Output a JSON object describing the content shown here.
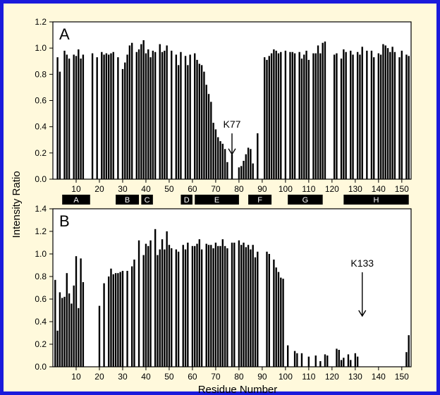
{
  "figure": {
    "border_color": "#1a1adc",
    "background": "#fff9dc",
    "shared_ylabel": "Intensity Ratio",
    "shared_xlabel": "Residue Number",
    "xtick_labels": [
      "10",
      "20",
      "30",
      "40",
      "50",
      "60",
      "70",
      "80",
      "90",
      "100",
      "110",
      "120",
      "130",
      "140",
      "150"
    ]
  },
  "chart_data": [
    {
      "type": "bar",
      "panel_label": "A",
      "xlim": [
        0,
        154
      ],
      "ylim": [
        0,
        1.2
      ],
      "yticks": [
        0.0,
        0.2,
        0.4,
        0.6,
        0.8,
        1.0,
        1.2
      ],
      "ytick_labels": [
        "0.0",
        "0.2",
        "0.4",
        "0.6",
        "0.8",
        "1.0",
        "1.2"
      ],
      "xticks": [
        10,
        20,
        30,
        40,
        50,
        60,
        70,
        80,
        90,
        100,
        110,
        120,
        130,
        140,
        150
      ],
      "bar_color": "#000000",
      "annotation": {
        "text": "K77",
        "x": 77,
        "y": 0.36,
        "arrow_to": 0.19
      },
      "x": [
        2,
        3,
        5,
        6,
        7,
        9,
        10,
        11,
        12,
        13,
        17,
        19,
        21,
        22,
        23,
        24,
        25,
        26,
        28,
        30,
        31,
        32,
        33,
        34,
        36,
        37,
        38,
        39,
        40,
        41,
        42,
        43,
        44,
        46,
        47,
        48,
        49,
        51,
        53,
        54,
        55,
        57,
        58,
        59,
        61,
        62,
        63,
        64,
        65,
        66,
        67,
        68,
        69,
        70,
        71,
        72,
        73,
        74,
        75,
        77,
        80,
        81,
        82,
        83,
        84,
        85,
        86,
        88,
        91,
        92,
        93,
        94,
        95,
        96,
        97,
        98,
        100,
        102,
        103,
        104,
        106,
        107,
        108,
        109,
        110,
        112,
        113,
        114,
        115,
        116,
        117,
        121,
        122,
        124,
        125,
        126,
        128,
        129,
        131,
        132,
        133,
        135,
        137,
        138,
        140,
        141,
        142,
        143,
        144,
        145,
        146,
        147,
        149,
        150,
        152,
        153
      ],
      "values": [
        0.93,
        0.82,
        0.98,
        0.95,
        0.92,
        0.95,
        0.94,
        0.99,
        0.92,
        0.95,
        0.96,
        0.93,
        0.97,
        0.95,
        0.96,
        0.95,
        0.96,
        0.97,
        0.93,
        0.84,
        0.89,
        0.95,
        1.02,
        1.04,
        0.97,
        0.99,
        1.03,
        1.06,
        0.96,
        0.99,
        0.93,
        0.98,
        0.97,
        1.03,
        0.97,
        0.98,
        1.02,
        0.98,
        0.95,
        0.87,
        0.97,
        0.94,
        0.87,
        0.95,
        0.96,
        0.91,
        0.88,
        0.87,
        0.82,
        0.72,
        0.65,
        0.59,
        0.43,
        0.38,
        0.32,
        0.29,
        0.27,
        0.23,
        0.13,
        0.19,
        0.09,
        0.1,
        0.14,
        0.19,
        0.24,
        0.23,
        0.12,
        0.35,
        0.93,
        0.91,
        0.94,
        0.96,
        0.99,
        0.98,
        0.96,
        0.97,
        0.98,
        0.97,
        0.97,
        0.96,
        0.97,
        0.92,
        0.95,
        0.98,
        0.91,
        0.96,
        0.96,
        1.02,
        0.96,
        1.04,
        1.05,
        0.95,
        0.96,
        0.92,
        0.99,
        0.97,
        0.98,
        0.95,
        0.97,
        0.95,
        1.01,
        0.98,
        0.98,
        0.93,
        0.96,
        0.95,
        1.03,
        1.02,
        1.0,
        0.97,
        1.01,
        0.97,
        0.93,
        0.98,
        0.95,
        0.94
      ],
      "segments": [
        {
          "label": "A",
          "start": 4,
          "end": 16
        },
        {
          "label": "B",
          "start": 27,
          "end": 37
        },
        {
          "label": "C",
          "start": 38,
          "end": 43
        },
        {
          "label": "D",
          "start": 55,
          "end": 60
        },
        {
          "label": "E",
          "start": 61,
          "end": 80
        },
        {
          "label": "F",
          "start": 84,
          "end": 94
        },
        {
          "label": "G",
          "start": 101,
          "end": 116
        },
        {
          "label": "H",
          "start": 125,
          "end": 153
        }
      ]
    },
    {
      "type": "bar",
      "panel_label": "B",
      "xlim": [
        0,
        154
      ],
      "ylim": [
        0,
        1.4
      ],
      "yticks": [
        0.0,
        0.2,
        0.4,
        0.6,
        0.8,
        1.0,
        1.2,
        1.4
      ],
      "ytick_labels": [
        "0.0",
        "0.2",
        "0.4",
        "0.6",
        "0.8",
        "1.0",
        "1.2",
        "1.4"
      ],
      "xticks": [
        10,
        20,
        30,
        40,
        50,
        60,
        70,
        80,
        90,
        100,
        110,
        120,
        130,
        140,
        150
      ],
      "bar_color": "#000000",
      "annotation": {
        "text": "K133",
        "x": 133,
        "y": 0.85,
        "arrow_to": 0.45
      },
      "x": [
        1,
        2,
        3,
        4,
        5,
        6,
        7,
        8,
        9,
        10,
        11,
        12,
        13,
        20,
        22,
        24,
        25,
        26,
        27,
        28,
        29,
        30,
        32,
        34,
        35,
        37,
        39,
        40,
        41,
        42,
        44,
        45,
        46,
        47,
        48,
        49,
        50,
        51,
        53,
        54,
        56,
        57,
        58,
        60,
        61,
        62,
        63,
        64,
        66,
        67,
        68,
        69,
        70,
        71,
        72,
        73,
        74,
        75,
        77,
        78,
        80,
        81,
        82,
        83,
        84,
        85,
        86,
        87,
        88,
        92,
        93,
        95,
        96,
        97,
        98,
        99,
        101,
        104,
        105,
        107,
        110,
        113,
        115,
        117,
        118,
        122,
        123,
        124,
        125,
        127,
        128,
        130,
        131,
        152,
        153
      ],
      "values": [
        0.77,
        0.32,
        0.66,
        0.61,
        0.62,
        0.83,
        0.65,
        0.56,
        0.72,
        0.98,
        0.52,
        0.96,
        0.75,
        0.54,
        0.74,
        0.8,
        0.87,
        0.82,
        0.83,
        0.83,
        0.84,
        0.85,
        0.85,
        0.89,
        0.95,
        1.12,
        0.99,
        1.09,
        1.07,
        1.12,
        1.22,
        0.99,
        1.04,
        1.13,
        1.04,
        1.2,
        1.08,
        1.05,
        1.04,
        1.02,
        1.08,
        1.04,
        1.1,
        1.07,
        1.07,
        1.09,
        1.13,
        1.04,
        1.09,
        1.08,
        1.08,
        1.05,
        1.1,
        1.07,
        1.07,
        1.13,
        1.07,
        1.05,
        1.1,
        1.1,
        1.12,
        1.08,
        1.1,
        1.06,
        1.08,
        1.04,
        1.08,
        0.97,
        1.02,
        1.02,
        1.0,
        0.95,
        0.88,
        0.84,
        0.79,
        0.78,
        0.19,
        0.14,
        0.12,
        0.12,
        0.09,
        0.1,
        0.05,
        0.11,
        0.1,
        0.16,
        0.15,
        0.06,
        0.08,
        0.11,
        0.06,
        0.12,
        0.09,
        0.13,
        0.28
      ]
    }
  ]
}
